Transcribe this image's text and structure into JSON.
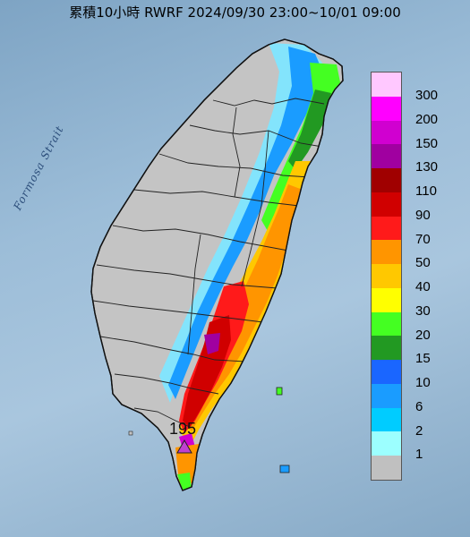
{
  "title": "累積10小時 RWRF 2024/09/30 23:00~10/01 09:00",
  "sea_label": "Formosa Strait",
  "max_marker": {
    "value": "195",
    "color": "#c040d0"
  },
  "legend": [
    {
      "label": "300",
      "color": "#ffc8ff"
    },
    {
      "label": "200",
      "color": "#ff00ff"
    },
    {
      "label": "150",
      "color": "#d000d0"
    },
    {
      "label": "130",
      "color": "#a000a0"
    },
    {
      "label": "110",
      "color": "#a00000"
    },
    {
      "label": "90",
      "color": "#d00000"
    },
    {
      "label": "70",
      "color": "#ff1a1a"
    },
    {
      "label": "50",
      "color": "#ff9500"
    },
    {
      "label": "40",
      "color": "#ffc800"
    },
    {
      "label": "30",
      "color": "#ffff00"
    },
    {
      "label": "20",
      "color": "#44ff22"
    },
    {
      "label": "15",
      "color": "#229922"
    },
    {
      "label": "10",
      "color": "#1a66ff"
    },
    {
      "label": "6",
      "color": "#1a9cff"
    },
    {
      "label": "2",
      "color": "#00ccff"
    },
    {
      "label": "1",
      "color": "#9cffff"
    },
    {
      "label": "",
      "color": "#c0c0c0"
    }
  ]
}
